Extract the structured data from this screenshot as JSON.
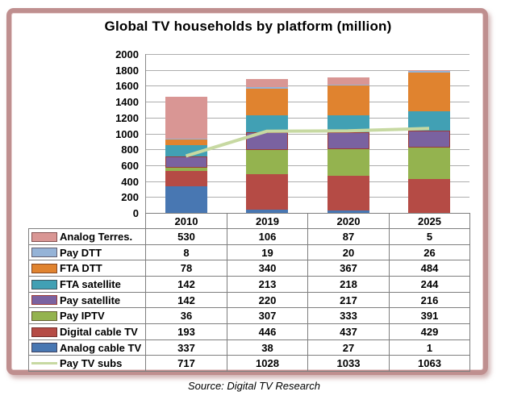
{
  "title": "Global TV households by platform (million)",
  "source": "Source: Digital TV Research",
  "chart_data": {
    "type": "bar",
    "subtype": "stacked-bar-with-line-overlay-and-data-table",
    "categories": [
      "2010",
      "2019",
      "2020",
      "2025"
    ],
    "series": [
      {
        "name": "Analog Terres.",
        "type": "bar",
        "color": "#D99694",
        "values": [
          530,
          106,
          87,
          5
        ]
      },
      {
        "name": "Pay DTT",
        "type": "bar",
        "color": "#95B3D7",
        "values": [
          8,
          19,
          20,
          26
        ]
      },
      {
        "name": "FTA DTT",
        "type": "bar",
        "color": "#E0832F",
        "values": [
          78,
          340,
          367,
          484
        ]
      },
      {
        "name": "FTA satellite",
        "type": "bar",
        "color": "#41A0B4",
        "values": [
          142,
          213,
          218,
          244
        ]
      },
      {
        "name": "Pay satellite",
        "type": "bar",
        "color": "#7A62A0",
        "border": "#9C3A38",
        "values": [
          142,
          220,
          217,
          216
        ]
      },
      {
        "name": "Pay IPTV",
        "type": "bar",
        "color": "#94B34F",
        "values": [
          36,
          307,
          333,
          391
        ]
      },
      {
        "name": "Digital cable TV",
        "type": "bar",
        "color": "#B54B45",
        "values": [
          193,
          446,
          437,
          429
        ]
      },
      {
        "name": "Analog cable TV",
        "type": "bar",
        "color": "#4877B2",
        "values": [
          337,
          38,
          27,
          1
        ]
      },
      {
        "name": "Pay TV subs",
        "type": "line",
        "color": "#C7D9A2",
        "values": [
          717,
          1028,
          1033,
          1063
        ]
      }
    ],
    "stack_order_bottom_to_top": [
      "Analog cable TV",
      "Digital cable TV",
      "Pay IPTV",
      "Pay satellite",
      "FTA satellite",
      "FTA DTT",
      "Pay DTT",
      "Analog Terres."
    ],
    "ylim": [
      0,
      2000
    ],
    "ytick_step": 200,
    "yticks": [
      0,
      200,
      400,
      600,
      800,
      1000,
      1200,
      1400,
      1600,
      1800,
      2000
    ],
    "grid": true,
    "legend_position": "table-left-column",
    "xlabel": "",
    "ylabel": ""
  }
}
